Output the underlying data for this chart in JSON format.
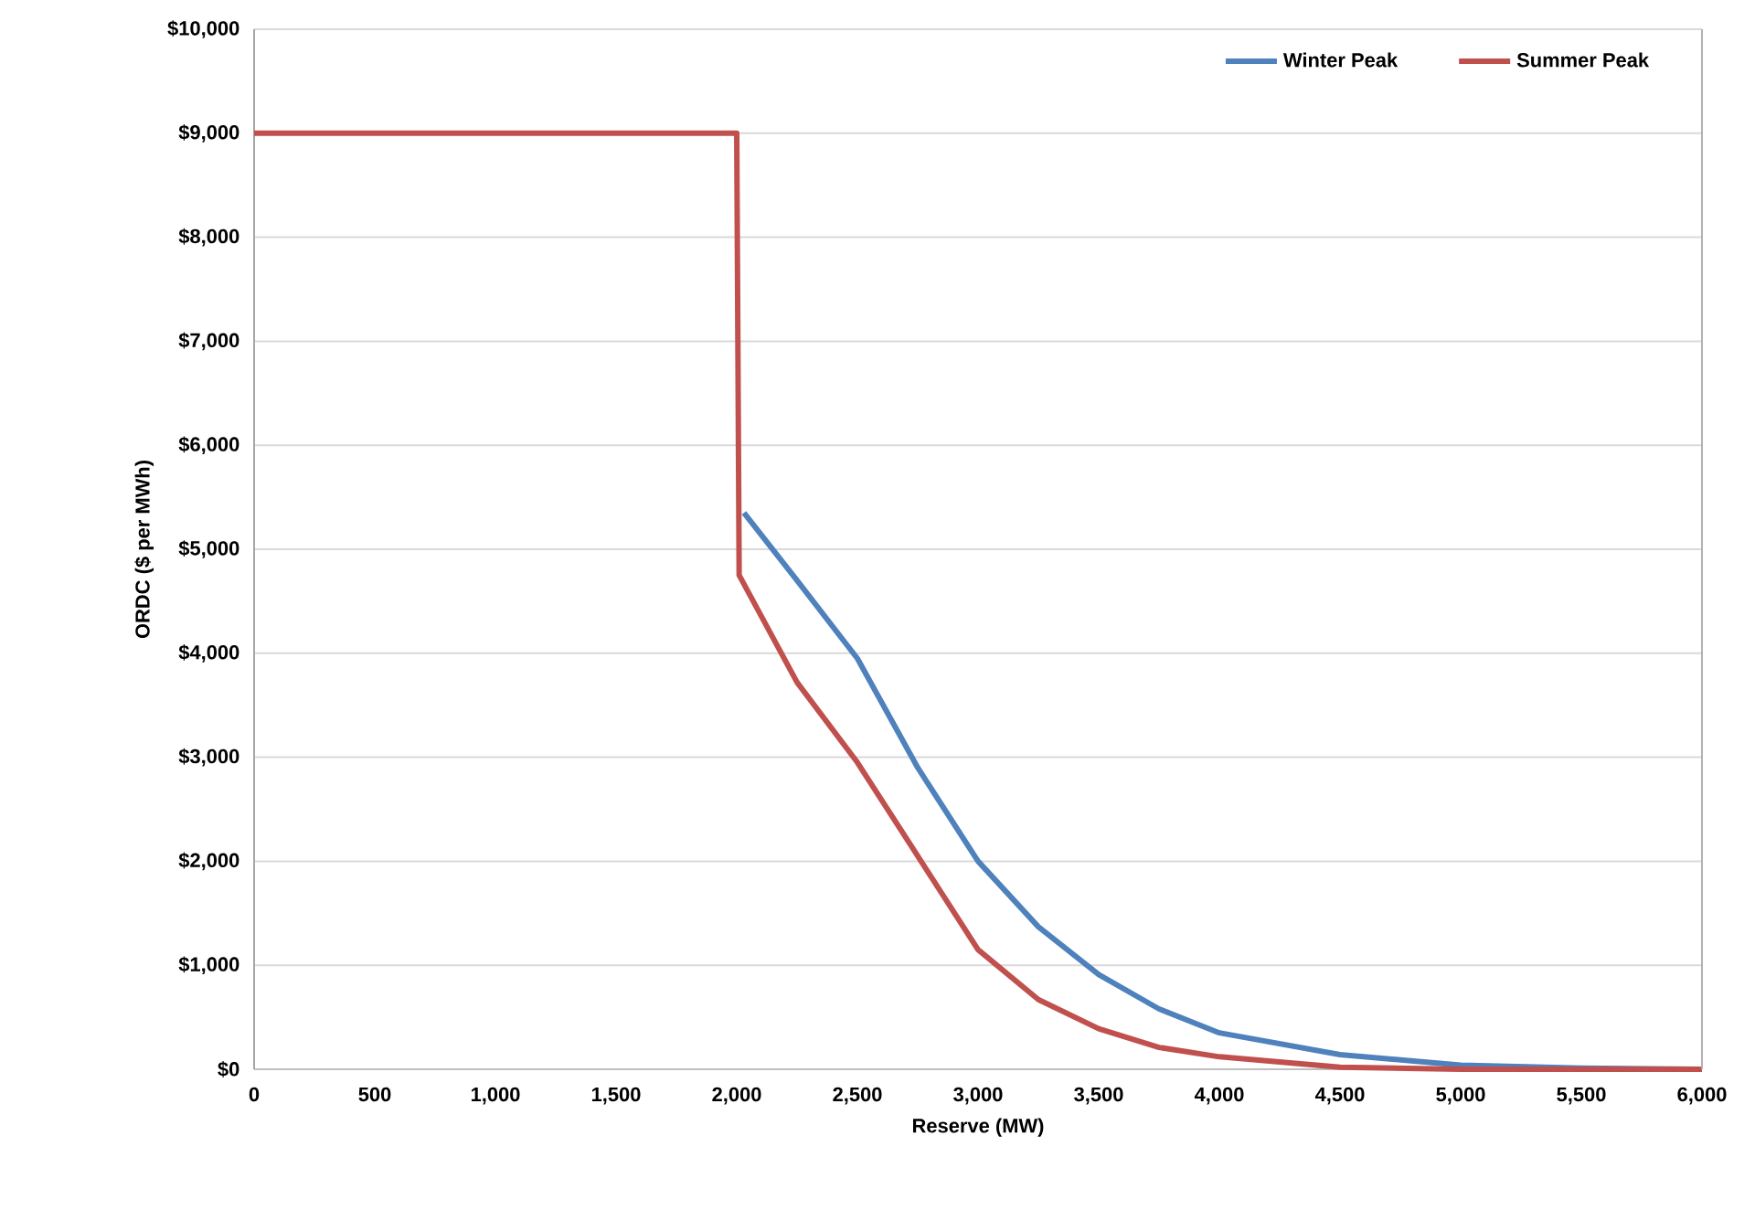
{
  "chart_data": {
    "type": "line",
    "xlabel": "Reserve (MW)",
    "ylabel": "ORDC ($ per MWh)",
    "xlim": [
      0,
      6000
    ],
    "ylim": [
      0,
      10000
    ],
    "xticks": [
      0,
      500,
      {
        "value": 1000,
        "label": "1,000"
      },
      {
        "value": 1500,
        "label": "1,500"
      },
      {
        "value": 2000,
        "label": "2,000"
      },
      {
        "value": 2500,
        "label": "2,500"
      },
      {
        "value": 3000,
        "label": "3,000"
      },
      {
        "value": 3500,
        "label": "3,500"
      },
      {
        "value": 4000,
        "label": "4,000"
      },
      {
        "value": 4500,
        "label": "4,500"
      },
      {
        "value": 5000,
        "label": "5,000"
      },
      {
        "value": 5500,
        "label": "5,500"
      },
      {
        "value": 6000,
        "label": "6,000"
      }
    ],
    "yticks": [
      {
        "value": 0,
        "label": "$0"
      },
      {
        "value": 1000,
        "label": "$1,000"
      },
      {
        "value": 2000,
        "label": "$2,000"
      },
      {
        "value": 3000,
        "label": "$3,000"
      },
      {
        "value": 4000,
        "label": "$4,000"
      },
      {
        "value": 5000,
        "label": "$5,000"
      },
      {
        "value": 6000,
        "label": "$6,000"
      },
      {
        "value": 7000,
        "label": "$7,000"
      },
      {
        "value": 8000,
        "label": "$8,000"
      },
      {
        "value": 9000,
        "label": "$9,000"
      },
      {
        "value": 10000,
        "label": "$10,000"
      }
    ],
    "grid": "y",
    "legend": "top right",
    "marker": "none",
    "line_style": "solid",
    "series": [
      {
        "name": "Winter Peak",
        "color": "#4f81bd",
        "x": [
          2030,
          2250,
          2500,
          2750,
          3000,
          3250,
          3500,
          3750,
          4000,
          4500,
          5000,
          5500,
          6000
        ],
        "values": [
          5350,
          4700,
          3950,
          2900,
          2000,
          1370,
          910,
          580,
          350,
          140,
          40,
          10,
          0
        ]
      },
      {
        "name": "Summer Peak",
        "color": "#c0504d",
        "x": [
          0,
          2000,
          2010,
          2250,
          2500,
          2750,
          3000,
          3250,
          3500,
          3750,
          4000,
          4500,
          5000,
          5500,
          6000
        ],
        "values": [
          9000,
          9000,
          4750,
          3720,
          2950,
          2050,
          1150,
          670,
          390,
          210,
          120,
          20,
          0,
          0,
          0
        ]
      }
    ]
  }
}
